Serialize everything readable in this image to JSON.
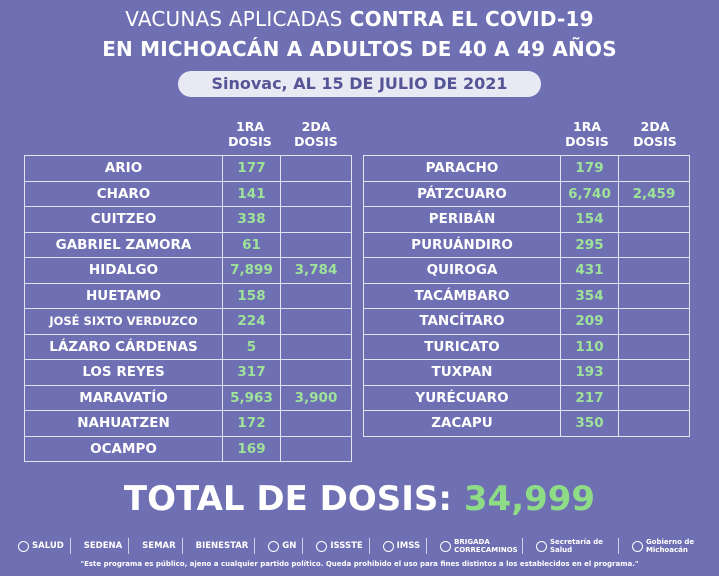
{
  "header": {
    "title_line1_a": "VACUNAS APLICADAS",
    "title_line1_b": "CONTRA EL COVID-19",
    "title_line2": "EN MICHOACÁN A ADULTOS DE 40 A 49 AÑOS",
    "subtitle": "Sinovac, AL 15 DE JULIO DE 2021"
  },
  "columns": {
    "dose1_a": "1RA",
    "dose1_b": "DOSIS",
    "dose2_a": "2DA",
    "dose2_b": "DOSIS"
  },
  "left_rows": [
    {
      "name": "ARIO",
      "d1": "177",
      "d2": ""
    },
    {
      "name": "CHARO",
      "d1": "141",
      "d2": ""
    },
    {
      "name": "CUITZEO",
      "d1": "338",
      "d2": ""
    },
    {
      "name": "GABRIEL ZAMORA",
      "d1": "61",
      "d2": ""
    },
    {
      "name": "HIDALGO",
      "d1": "7,899",
      "d2": "3,784"
    },
    {
      "name": "HUETAMO",
      "d1": "158",
      "d2": ""
    },
    {
      "name": "JOSÉ SIXTO VERDUZCO",
      "d1": "224",
      "d2": ""
    },
    {
      "name": "LÁZARO CÁRDENAS",
      "d1": "5",
      "d2": ""
    },
    {
      "name": "LOS REYES",
      "d1": "317",
      "d2": ""
    },
    {
      "name": "MARAVATÍO",
      "d1": "5,963",
      "d2": "3,900"
    },
    {
      "name": "NAHUATZEN",
      "d1": "172",
      "d2": ""
    },
    {
      "name": "OCAMPO",
      "d1": "169",
      "d2": ""
    }
  ],
  "right_rows": [
    {
      "name": "PARACHO",
      "d1": "179",
      "d2": ""
    },
    {
      "name": "PÁTZCUARO",
      "d1": "6,740",
      "d2": "2,459"
    },
    {
      "name": "PERIBÁN",
      "d1": "154",
      "d2": ""
    },
    {
      "name": "PURUÁNDIRO",
      "d1": "295",
      "d2": ""
    },
    {
      "name": "QUIROGA",
      "d1": "431",
      "d2": ""
    },
    {
      "name": "TACÁMBARO",
      "d1": "354",
      "d2": ""
    },
    {
      "name": "TANCÍTARO",
      "d1": "209",
      "d2": ""
    },
    {
      "name": "TURICATO",
      "d1": "110",
      "d2": ""
    },
    {
      "name": "TUXPAN",
      "d1": "193",
      "d2": ""
    },
    {
      "name": "YURÉCUARO",
      "d1": "217",
      "d2": ""
    },
    {
      "name": "ZACAPU",
      "d1": "350",
      "d2": ""
    }
  ],
  "total": {
    "label": "TOTAL DE DOSIS:",
    "value": "34,999"
  },
  "logos": [
    {
      "label": "SALUD",
      "icon": "eagle-seal-icon"
    },
    {
      "label": "SEDENA",
      "icon": ""
    },
    {
      "label": "SEMAR",
      "icon": ""
    },
    {
      "label": "BIENESTAR",
      "icon": ""
    },
    {
      "label": "GN",
      "icon": "guard-badge-icon"
    },
    {
      "label": "ISSSTE",
      "icon": "issste-icon"
    },
    {
      "label": "IMSS",
      "icon": "imss-icon"
    },
    {
      "label": "BRIGADA CORRECAMINOS",
      "icon": "roadrunner-icon"
    },
    {
      "label": "Secretaría de Salud",
      "icon": "state-shield-icon"
    },
    {
      "label": "Gobierno de Michoacán",
      "icon": "state-shield-icon"
    }
  ],
  "footer": "\"Este programa es público, ajeno a cualquier partido político. Queda prohibido el uso para fines distintos a los establecidos en el programa.\""
}
